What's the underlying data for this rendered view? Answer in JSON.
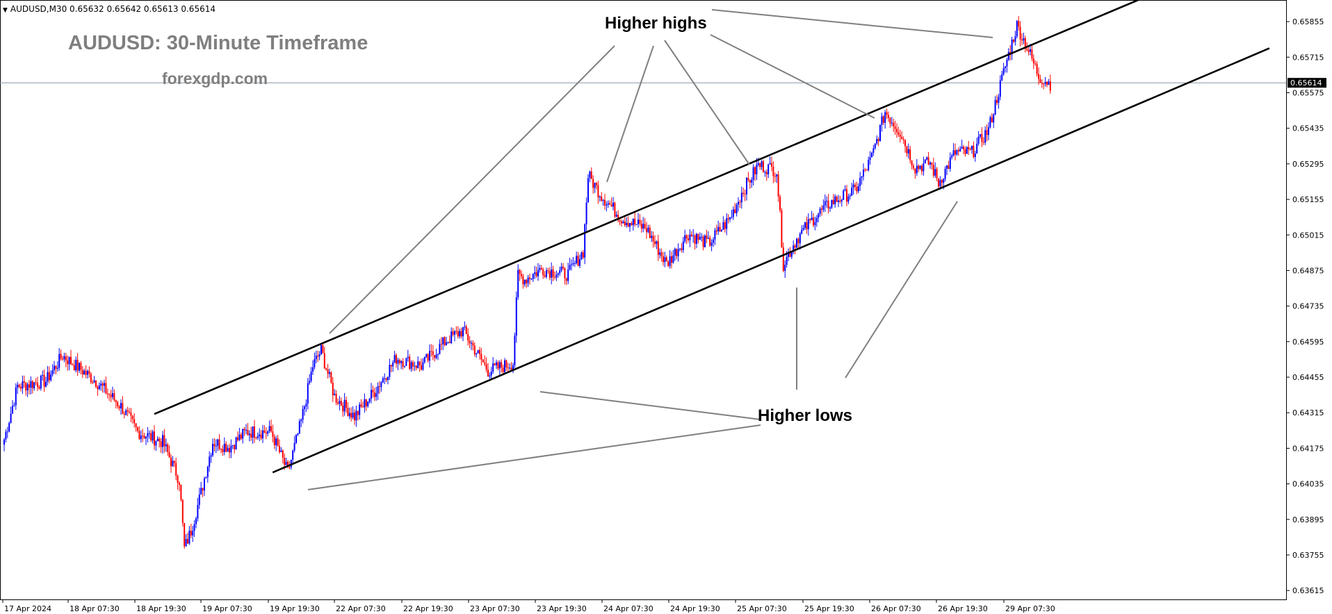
{
  "header": {
    "symbol_line": "AUDUSD,M30  0.65632 0.65642 0.65613 0.65614",
    "title": "AUDUSD: 30-Minute Timeframe",
    "website": "forexgdp.com"
  },
  "annotations": {
    "higher_highs": "Higher highs",
    "higher_lows": "Higher lows"
  },
  "colors": {
    "bull": "#0000ff",
    "bear": "#ff0000",
    "channel": "#000000",
    "pointer": "#7f7f7f",
    "price_line": "#8797a8"
  },
  "chart_data": {
    "type": "candlestick",
    "symbol": "AUDUSD",
    "timeframe": "M30",
    "current_price": "0.65614",
    "y_ticks": [
      "0.65855",
      "0.65715",
      "0.65575",
      "0.65435",
      "0.65295",
      "0.65155",
      "0.65015",
      "0.64875",
      "0.64735",
      "0.64595",
      "0.64455",
      "0.64315",
      "0.64175",
      "0.64035",
      "0.63895",
      "0.63755",
      "0.63615"
    ],
    "ylim": [
      0.6358,
      0.6594
    ],
    "x_ticks": [
      "17 Apr 2024",
      "18 Apr 07:30",
      "18 Apr 19:30",
      "19 Apr 07:30",
      "19 Apr 19:30",
      "22 Apr 07:30",
      "22 Apr 19:30",
      "23 Apr 07:30",
      "23 Apr 19:30",
      "24 Apr 07:30",
      "24 Apr 19:30",
      "25 Apr 07:30",
      "25 Apr 19:30",
      "26 Apr 07:30",
      "26 Apr 19:30",
      "29 Apr 07:30"
    ],
    "price_path": [
      [
        0,
        0.6421
      ],
      [
        8,
        0.6442
      ],
      [
        25,
        0.6444
      ],
      [
        35,
        0.6454
      ],
      [
        55,
        0.6444
      ],
      [
        70,
        0.6434
      ],
      [
        80,
        0.6424
      ],
      [
        95,
        0.642
      ],
      [
        105,
        0.6405
      ],
      [
        108,
        0.6378
      ],
      [
        112,
        0.6385
      ],
      [
        118,
        0.64
      ],
      [
        125,
        0.642
      ],
      [
        135,
        0.6418
      ],
      [
        145,
        0.6424
      ],
      [
        160,
        0.6424
      ],
      [
        170,
        0.6408
      ],
      [
        178,
        0.6428
      ],
      [
        185,
        0.645
      ],
      [
        190,
        0.6456
      ],
      [
        198,
        0.6438
      ],
      [
        210,
        0.643
      ],
      [
        222,
        0.644
      ],
      [
        235,
        0.6453
      ],
      [
        250,
        0.645
      ],
      [
        265,
        0.646
      ],
      [
        275,
        0.6464
      ],
      [
        290,
        0.6448
      ],
      [
        305,
        0.6451
      ],
      [
        308,
        0.6486
      ],
      [
        312,
        0.6484
      ],
      [
        322,
        0.6488
      ],
      [
        338,
        0.6486
      ],
      [
        347,
        0.6495
      ],
      [
        350,
        0.6525
      ],
      [
        358,
        0.6517
      ],
      [
        370,
        0.6508
      ],
      [
        385,
        0.6504
      ],
      [
        397,
        0.649
      ],
      [
        410,
        0.6502
      ],
      [
        422,
        0.6498
      ],
      [
        435,
        0.6508
      ],
      [
        442,
        0.6518
      ],
      [
        452,
        0.6529
      ],
      [
        463,
        0.6527
      ],
      [
        467,
        0.649
      ],
      [
        475,
        0.65
      ],
      [
        485,
        0.6508
      ],
      [
        495,
        0.6514
      ],
      [
        510,
        0.6519
      ],
      [
        520,
        0.6532
      ],
      [
        528,
        0.655
      ],
      [
        537,
        0.6542
      ],
      [
        546,
        0.6528
      ],
      [
        555,
        0.653
      ],
      [
        560,
        0.6522
      ],
      [
        570,
        0.6534
      ],
      [
        580,
        0.6534
      ],
      [
        590,
        0.6543
      ],
      [
        600,
        0.6568
      ],
      [
        607,
        0.6584
      ],
      [
        614,
        0.6574
      ],
      [
        620,
        0.6564
      ],
      [
        627,
        0.6561
      ]
    ],
    "channel_upper": [
      [
        0.12,
        0.6431
      ],
      [
        0.885,
        0.6594
      ]
    ],
    "channel_lower": [
      [
        0.212,
        0.6408
      ],
      [
        0.987,
        0.6575
      ]
    ]
  }
}
